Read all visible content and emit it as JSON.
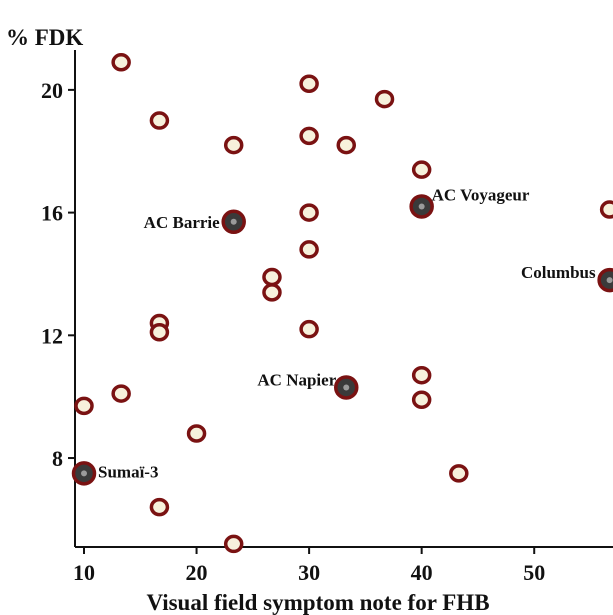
{
  "chart_data": {
    "type": "scatter",
    "title": "",
    "xlabel": "Visual field symptom note for FHB",
    "ylabel": "% FDK",
    "xlim": [
      9.2,
      57
    ],
    "ylim": [
      5.1,
      21.3
    ],
    "xticks": [
      10,
      20,
      30,
      40,
      50
    ],
    "yticks": [
      8,
      12,
      16,
      20
    ],
    "grid": false,
    "colors": {
      "marker_edge": "#7a1212",
      "marker_fill": "#f7f1dc",
      "highlight_fill": "#3a3a3a"
    },
    "points": [
      {
        "x": 13.3,
        "y": 20.9
      },
      {
        "x": 30,
        "y": 20.2
      },
      {
        "x": 36.7,
        "y": 19.7
      },
      {
        "x": 16.7,
        "y": 19.0
      },
      {
        "x": 30,
        "y": 18.5
      },
      {
        "x": 23.3,
        "y": 18.2
      },
      {
        "x": 33.3,
        "y": 18.2
      },
      {
        "x": 40,
        "y": 17.4
      },
      {
        "x": 56.7,
        "y": 16.1
      },
      {
        "x": 30,
        "y": 16.0
      },
      {
        "x": 30,
        "y": 14.8
      },
      {
        "x": 26.7,
        "y": 13.9
      },
      {
        "x": 26.7,
        "y": 13.4
      },
      {
        "x": 16.7,
        "y": 12.4
      },
      {
        "x": 16.7,
        "y": 12.1
      },
      {
        "x": 30,
        "y": 12.2
      },
      {
        "x": 40,
        "y": 10.7
      },
      {
        "x": 13.3,
        "y": 10.1
      },
      {
        "x": 40,
        "y": 9.9
      },
      {
        "x": 10,
        "y": 9.7
      },
      {
        "x": 20,
        "y": 8.8
      },
      {
        "x": 43.3,
        "y": 7.5
      },
      {
        "x": 16.7,
        "y": 6.4
      },
      {
        "x": 23.3,
        "y": 5.2
      }
    ],
    "highlighted": [
      {
        "label": "AC Voyageur",
        "x": 40,
        "y": 16.2
      },
      {
        "label": "AC Barrie",
        "x": 23.3,
        "y": 15.7
      },
      {
        "label": "Columbus",
        "x": 56.7,
        "y": 13.8
      },
      {
        "label": "AC Napier",
        "x": 33.3,
        "y": 10.3
      },
      {
        "label": "Sumaï-3",
        "x": 10,
        "y": 7.5
      }
    ]
  }
}
